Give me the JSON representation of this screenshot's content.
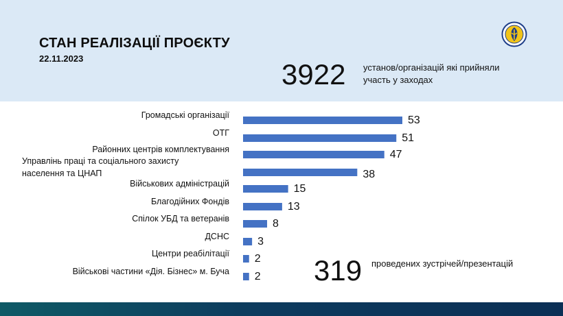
{
  "header": {
    "title": "СТАН РЕАЛІЗАЦІЇ ПРОЄКТУ",
    "date": "22.11.2023"
  },
  "summary": {
    "organizations_count": "3922",
    "organizations_desc": "установ/організацій які прийняли участь у заходах",
    "meetings_count": "319",
    "meetings_desc": "проведених зустрічей/презентацій"
  },
  "logo": {
    "icon": "ministry-emblem-icon"
  },
  "colors": {
    "bar": "#4472c4",
    "header_bg": "#dbe9f6"
  },
  "chart_data": {
    "type": "bar",
    "orientation": "horizontal",
    "categories": [
      [
        "Громадські організації"
      ],
      [
        "ОТГ"
      ],
      [
        "Районних центрів комплектування"
      ],
      [
        "Управлінь праці та соціального захисту",
        "населення та ЦНАП"
      ],
      [
        "Військових  адміністрацій"
      ],
      [
        "Благодійних Фондів"
      ],
      [
        "Спілок УБД та ветеранів"
      ],
      [
        "ДСНС"
      ],
      [
        "Центри реабілітації"
      ],
      [
        "Військові частини «Дія. Бізнес» м. Буча"
      ]
    ],
    "values": [
      53,
      51,
      47,
      38,
      15,
      13,
      8,
      3,
      2,
      2
    ],
    "data_labels": [
      "53",
      "51",
      "47",
      "38",
      "15",
      "13",
      "8",
      "3",
      "2",
      "2"
    ],
    "grid": false
  }
}
